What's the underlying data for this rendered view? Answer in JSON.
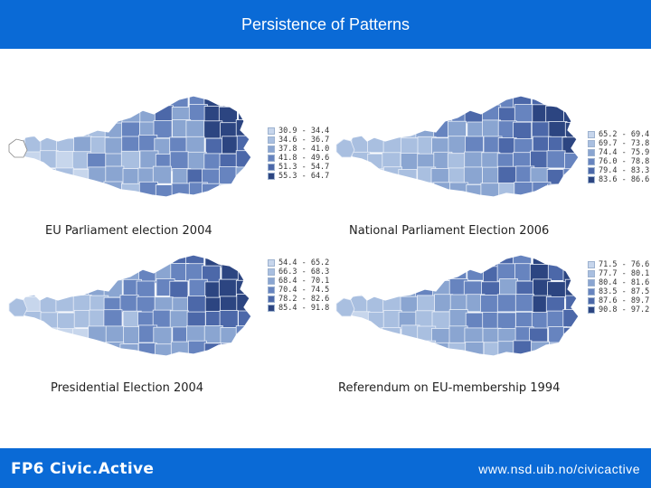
{
  "header": {
    "title": "Persistence of Patterns"
  },
  "footer": {
    "brand": "FP6 Civic.Active",
    "url": "www.nsd.uib.no/civicactive"
  },
  "colors": {
    "bar": "#0a6ad6",
    "scale": [
      "#c7d6ec",
      "#a9bfe0",
      "#8aa5d1",
      "#6784bf",
      "#4c68a9",
      "#2c4581"
    ]
  },
  "maps": [
    {
      "title": "EU Parliament election 2004",
      "legend": [
        "30.9 - 34.4",
        "34.6 - 36.7",
        "37.8 - 41.0",
        "41.8 - 49.6",
        "51.3 - 54.7",
        "55.3 - 64.7"
      ]
    },
    {
      "title": "National Parliament Election 2006",
      "legend": [
        "65.2 - 69.4",
        "69.7 - 73.8",
        "74.4 - 75.9",
        "76.0 - 78.8",
        "79.4 - 83.3",
        "83.6 - 86.6"
      ]
    },
    {
      "title": "Presidential Election 2004",
      "legend": [
        "54.4 - 65.2",
        "66.3 - 68.3",
        "68.4 - 70.1",
        "70.4 - 74.5",
        "78.2 - 82.6",
        "85.4 - 91.8"
      ]
    },
    {
      "title": "Referendum on EU-membership 1994",
      "legend": [
        "71.5 - 76.6",
        "77.7 - 80.1",
        "80.4 - 81.6",
        "83.5 - 87.5",
        "87.6 - 89.7",
        "90.8 - 97.2"
      ]
    }
  ]
}
